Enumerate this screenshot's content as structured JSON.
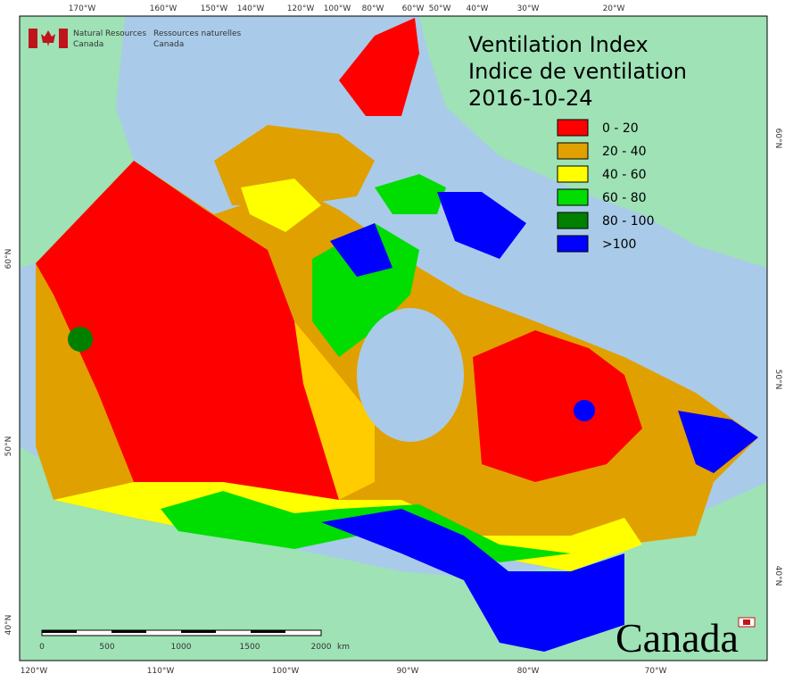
{
  "header": {
    "agency_en": [
      "Natural Resources",
      "Canada"
    ],
    "agency_fr": [
      "Ressources naturelles",
      "Canada"
    ]
  },
  "title": {
    "en": "Ventilation Index",
    "fr": "Indice de ventilation",
    "date": "2016-10-24"
  },
  "legend": [
    {
      "label": "0 - 20",
      "color": "#ff0000"
    },
    {
      "label": "20 - 40",
      "color": "#e0a000"
    },
    {
      "label": "40 - 60",
      "color": "#ffff00"
    },
    {
      "label": "60 - 80",
      "color": "#00dd00"
    },
    {
      "label": "80 - 100",
      "color": "#008000"
    },
    {
      "label": ">100",
      "color": "#0000ff"
    }
  ],
  "top_labels": [
    "170°W",
    "160°W",
    "150°W",
    "140°W",
    "120°W",
    "100°W",
    "80°W",
    "60°W",
    "50°W",
    "40°W",
    "30°W",
    "20°W"
  ],
  "bottom_labels": [
    "120°W",
    "110°W",
    "100°W",
    "90°W",
    "80°W",
    "70°W"
  ],
  "left_labels": [
    "60°N",
    "50°N",
    "40°N"
  ],
  "right_labels": [
    "60°N",
    "50°N",
    "40°N"
  ],
  "scale": {
    "ticks": [
      "0",
      "500",
      "1000",
      "1500",
      "2000"
    ],
    "unit": "km"
  },
  "wordmark": "Canada"
}
